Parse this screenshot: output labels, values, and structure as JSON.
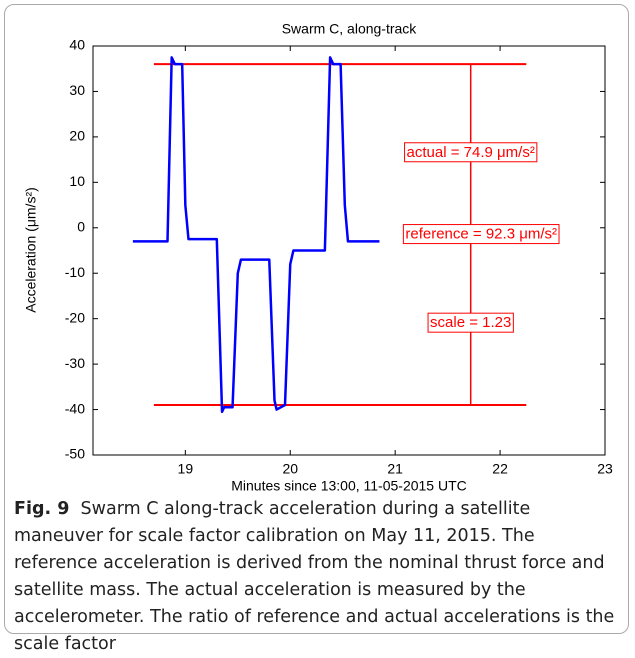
{
  "chart_data": {
    "type": "line",
    "title": "Swarm C, along-track",
    "x_label": "Minutes since 13:00, 11-05-2015 UTC",
    "y_label": "Acceleration (μm/s²)",
    "x": [
      18.5,
      18.83,
      18.87,
      18.9,
      18.97,
      19.0,
      19.03,
      19.3,
      19.35,
      19.37,
      19.45,
      19.5,
      19.53,
      19.8,
      19.85,
      19.87,
      19.95,
      20.0,
      20.03,
      20.33,
      20.38,
      20.41,
      20.48,
      20.52,
      20.55,
      20.85
    ],
    "series": [
      {
        "name": "along-track",
        "color": "#0000ff",
        "values": [
          -3,
          -3,
          37.5,
          36,
          36,
          5,
          -2.5,
          -2.5,
          -40.5,
          -39.5,
          -39.5,
          -10,
          -7,
          -7,
          -38,
          -40,
          -39,
          -8,
          -5,
          -5,
          37.5,
          36,
          36,
          5,
          -3,
          -3
        ]
      }
    ],
    "hlines": [
      {
        "y": 36,
        "x": [
          18.7,
          22.25
        ]
      },
      {
        "y": -39,
        "x": [
          18.7,
          22.25
        ]
      }
    ],
    "vline": {
      "x": 21.72,
      "y": [
        -39,
        36
      ]
    },
    "ref_color": "#ff0000",
    "annotations": [
      {
        "text": "actual = 74.9 μm/s²",
        "x": 21.72,
        "y": 16.5
      },
      {
        "text": "reference = 92.3 μm/s²",
        "x": 21.82,
        "y": -1.5
      },
      {
        "text": "scale = 1.23",
        "x": 21.72,
        "y": -21
      }
    ],
    "xlim": [
      18.12,
      23
    ],
    "xticks": [
      19,
      20,
      21,
      22,
      23
    ],
    "ylim": [
      -50,
      40
    ],
    "yticks": [
      -50,
      -40,
      -30,
      -20,
      -10,
      0,
      10,
      20,
      30,
      40
    ]
  },
  "caption": {
    "label": "Fig. 9",
    "text": "Swarm C along-track acceleration during a satellite maneuver for scale factor calibration on May 11, 2015. The reference acceleration is derived from the nominal thrust force and satellite mass. The actual acceleration is measured by the accelerometer. The ratio of reference and actual accelerations is the scale factor"
  }
}
